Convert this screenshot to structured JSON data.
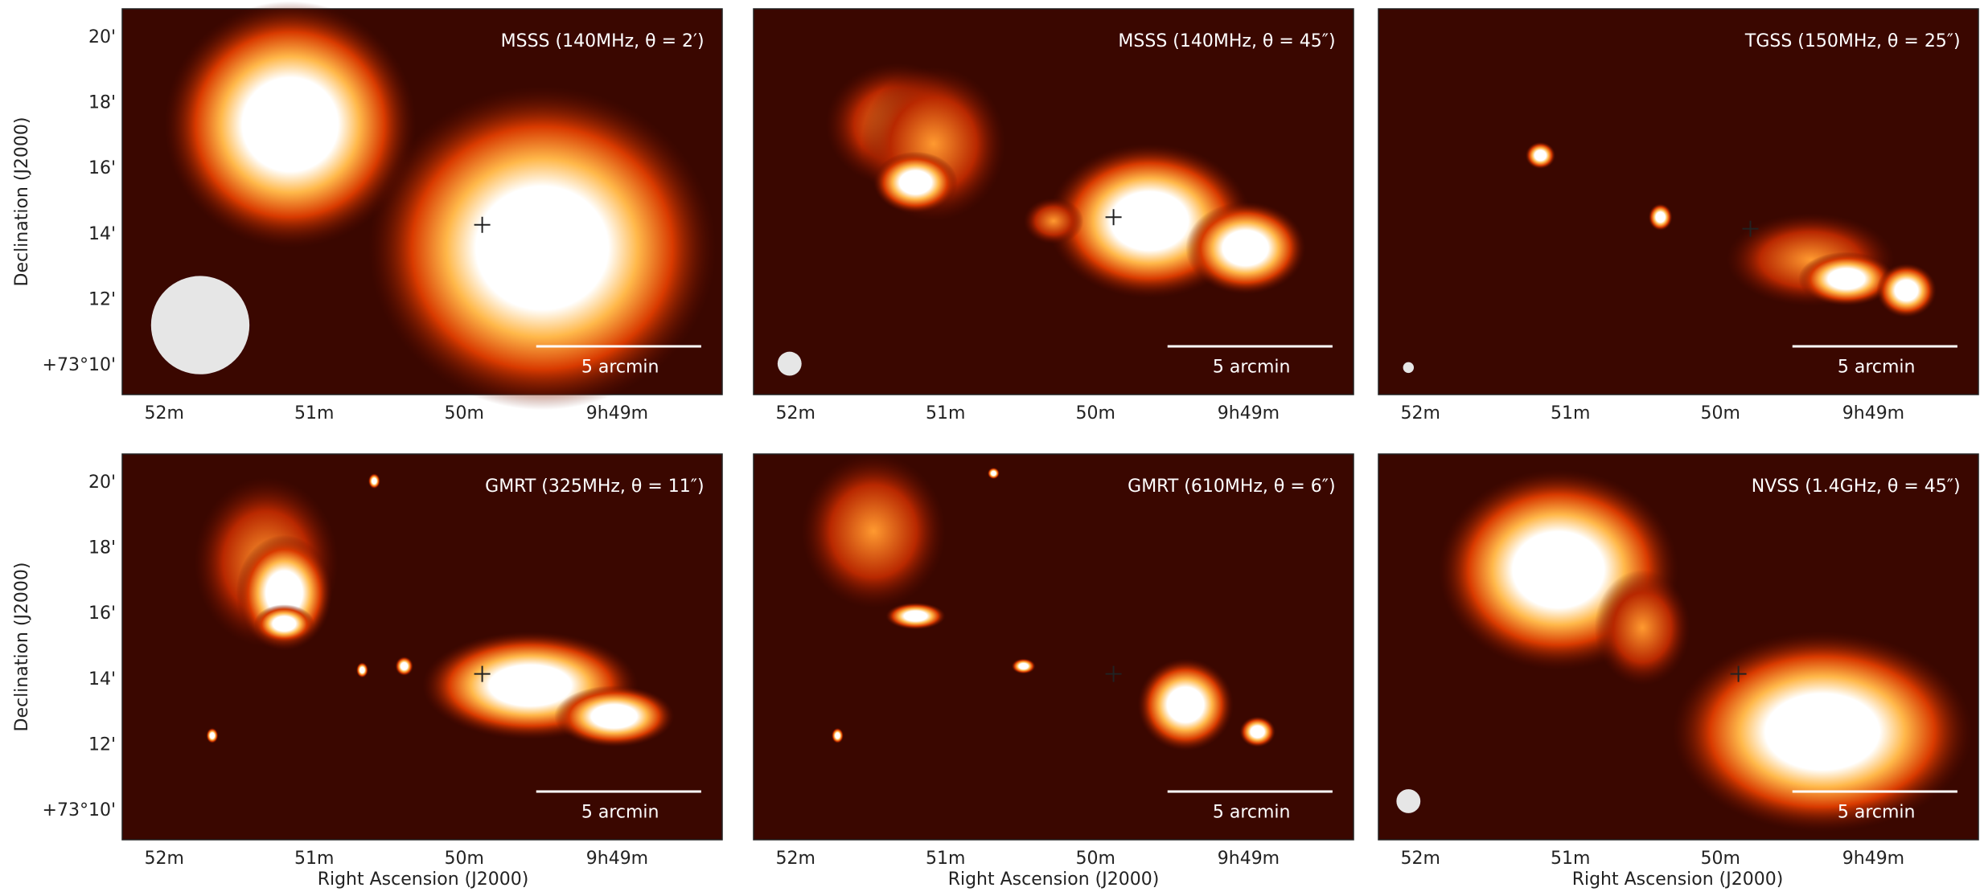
{
  "y_axis_label": "Declination (J2000)",
  "x_axis_label": "Right Ascension (J2000)",
  "y_ticks": [
    "20'",
    "18'",
    "16'",
    "14'",
    "12'",
    "+73°10'"
  ],
  "x_ticks": [
    "52m",
    "51m",
    "50m",
    "9h49m"
  ],
  "panels": [
    {
      "label": "MSSS (140MHz, θ = 2′)",
      "scale_bar": "5 arcmin"
    },
    {
      "label": "MSSS (140MHz, θ = 45″)",
      "scale_bar": "5 arcmin"
    },
    {
      "label": "TGSS (150MHz, θ = 25″)",
      "scale_bar": "5 arcmin"
    },
    {
      "label": "GMRT (325MHz, θ = 11″)",
      "scale_bar": "5 arcmin"
    },
    {
      "label": "GMRT (610MHz, θ = 6″)",
      "scale_bar": "5 arcmin"
    },
    {
      "label": "NVSS (1.4GHz, θ = 45″)",
      "scale_bar": "5 arcmin"
    }
  ]
}
